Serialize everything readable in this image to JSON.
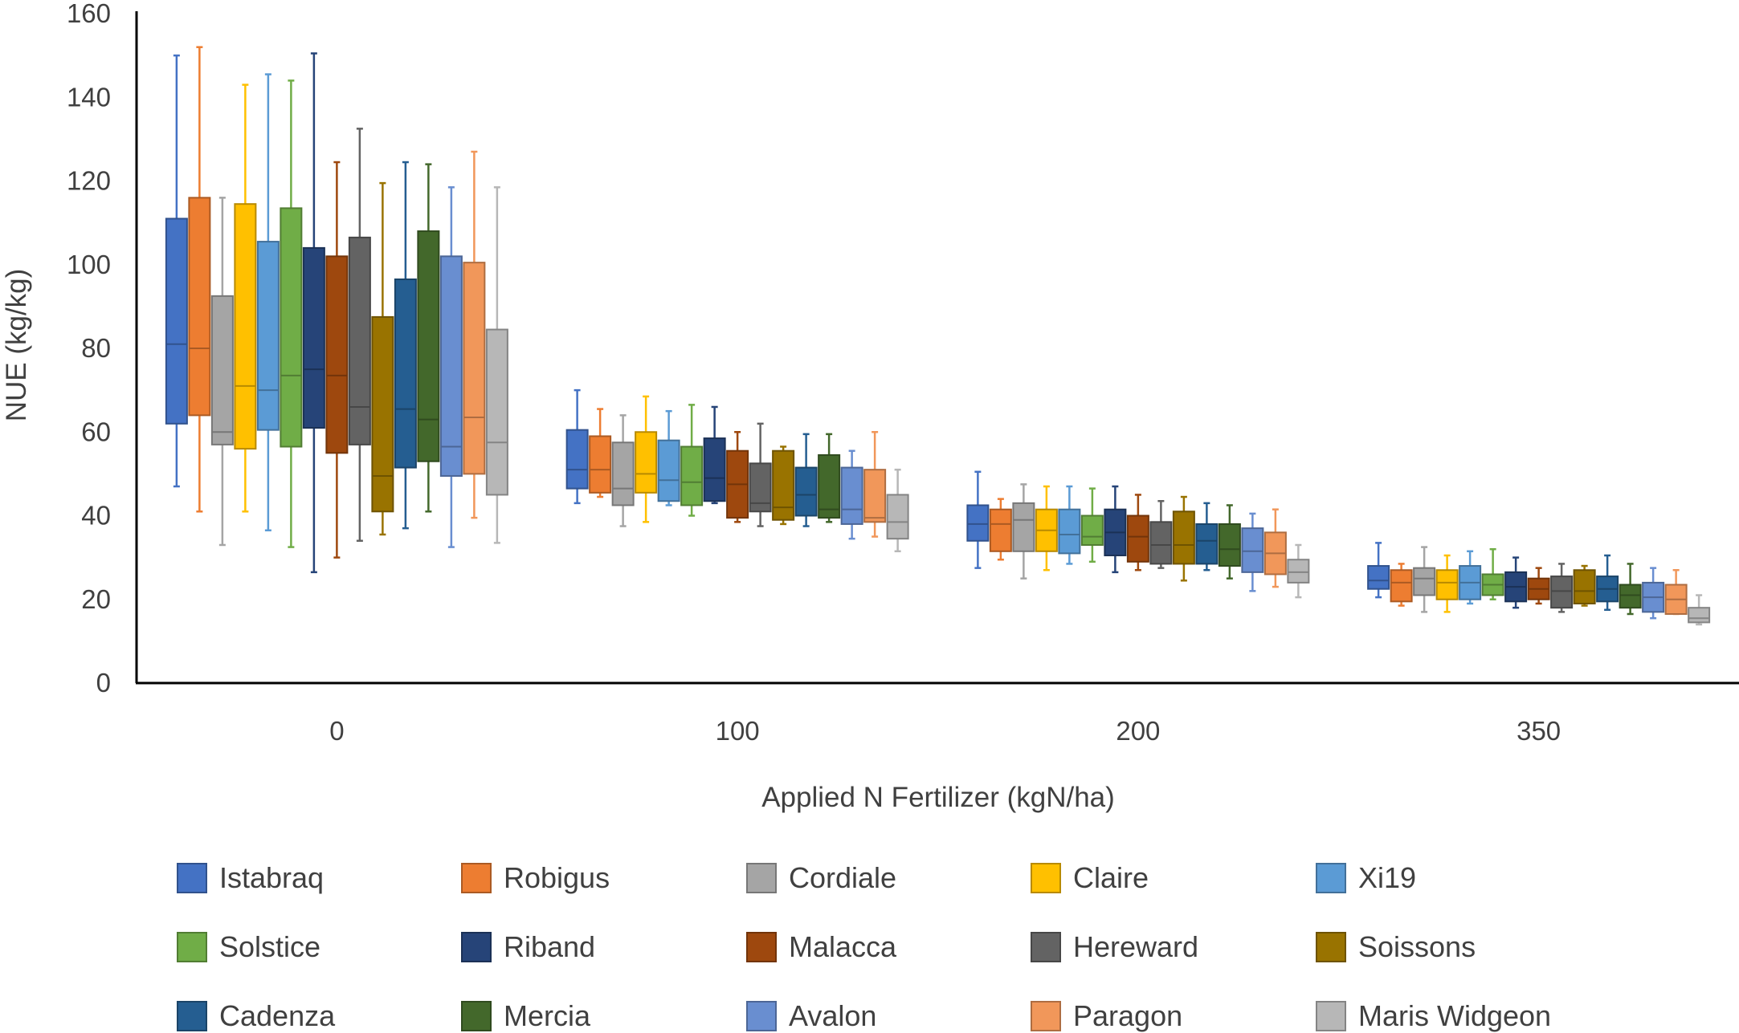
{
  "chart_data": {
    "type": "box",
    "xlabel": "Applied N Fertilizer (kgN/ha)",
    "ylabel": "NUE (kg/kg)",
    "ylim": [
      0,
      160
    ],
    "yticks": [
      0,
      20,
      40,
      60,
      80,
      100,
      120,
      140,
      160
    ],
    "categories": [
      "0",
      "100",
      "200",
      "350"
    ],
    "grid": false,
    "legend_position": "bottom",
    "series": [
      {
        "name": "Istabraq",
        "color": "#4472C4",
        "boxes": [
          {
            "min": 47,
            "q1": 62,
            "median": 81,
            "q3": 111,
            "max": 150
          },
          {
            "min": 43,
            "q1": 46.5,
            "median": 51,
            "q3": 60.5,
            "max": 70
          },
          {
            "min": 27.5,
            "q1": 34,
            "median": 38,
            "q3": 42.5,
            "max": 50.5
          },
          {
            "min": 20.5,
            "q1": 22.5,
            "median": 24.5,
            "q3": 28,
            "max": 33.5
          }
        ]
      },
      {
        "name": "Robigus",
        "color": "#ED7D31",
        "boxes": [
          {
            "min": 41,
            "q1": 64,
            "median": 80,
            "q3": 116,
            "max": 152
          },
          {
            "min": 44.5,
            "q1": 45.5,
            "median": 51,
            "q3": 59,
            "max": 65.5
          },
          {
            "min": 29.5,
            "q1": 31.5,
            "median": 38,
            "q3": 41.5,
            "max": 44
          },
          {
            "min": 18.5,
            "q1": 19.5,
            "median": 24,
            "q3": 27,
            "max": 28.5
          }
        ]
      },
      {
        "name": "Cordiale",
        "color": "#A5A5A5",
        "boxes": [
          {
            "min": 33,
            "q1": 57,
            "median": 60,
            "q3": 92.5,
            "max": 116
          },
          {
            "min": 37.5,
            "q1": 42.5,
            "median": 46.5,
            "q3": 57.5,
            "max": 64
          },
          {
            "min": 25,
            "q1": 31.5,
            "median": 39,
            "q3": 43,
            "max": 47.5
          },
          {
            "min": 17,
            "q1": 21,
            "median": 25,
            "q3": 27.5,
            "max": 32.5
          }
        ]
      },
      {
        "name": "Claire",
        "color": "#FFC000",
        "boxes": [
          {
            "min": 41,
            "q1": 56,
            "median": 71,
            "q3": 114.5,
            "max": 143
          },
          {
            "min": 38.5,
            "q1": 45.5,
            "median": 50,
            "q3": 60,
            "max": 68.5
          },
          {
            "min": 27,
            "q1": 31.5,
            "median": 36.5,
            "q3": 41.5,
            "max": 47
          },
          {
            "min": 17,
            "q1": 20,
            "median": 24,
            "q3": 27,
            "max": 30.5
          }
        ]
      },
      {
        "name": "Xi19",
        "color": "#5B9BD5",
        "boxes": [
          {
            "min": 36.5,
            "q1": 60.5,
            "median": 70,
            "q3": 105.5,
            "max": 145.5
          },
          {
            "min": 42.5,
            "q1": 43.5,
            "median": 48.5,
            "q3": 58,
            "max": 65
          },
          {
            "min": 28.5,
            "q1": 31,
            "median": 35.5,
            "q3": 41.5,
            "max": 47
          },
          {
            "min": 19,
            "q1": 20,
            "median": 24,
            "q3": 28,
            "max": 31.5
          }
        ]
      },
      {
        "name": "Solstice",
        "color": "#70AD47",
        "boxes": [
          {
            "min": 32.5,
            "q1": 56.5,
            "median": 73.5,
            "q3": 113.5,
            "max": 144
          },
          {
            "min": 40,
            "q1": 42.5,
            "median": 48,
            "q3": 56.5,
            "max": 66.5
          },
          {
            "min": 29,
            "q1": 33,
            "median": 35,
            "q3": 40,
            "max": 46.5
          },
          {
            "min": 20,
            "q1": 21,
            "median": 23.5,
            "q3": 26,
            "max": 32
          }
        ]
      },
      {
        "name": "Riband",
        "color": "#264478",
        "boxes": [
          {
            "min": 26.5,
            "q1": 61,
            "median": 75,
            "q3": 104,
            "max": 150.5
          },
          {
            "min": 43,
            "q1": 43.5,
            "median": 49,
            "q3": 58.5,
            "max": 66
          },
          {
            "min": 26.5,
            "q1": 30.5,
            "median": 36,
            "q3": 41.5,
            "max": 47
          },
          {
            "min": 18,
            "q1": 19.5,
            "median": 23,
            "q3": 26.5,
            "max": 30
          }
        ]
      },
      {
        "name": "Malacca",
        "color": "#9E480E",
        "boxes": [
          {
            "min": 30,
            "q1": 55,
            "median": 73.5,
            "q3": 102,
            "max": 124.5
          },
          {
            "min": 38.5,
            "q1": 39.5,
            "median": 47.5,
            "q3": 55.5,
            "max": 60
          },
          {
            "min": 27,
            "q1": 29,
            "median": 35,
            "q3": 40,
            "max": 45
          },
          {
            "min": 19,
            "q1": 20,
            "median": 22.5,
            "q3": 25,
            "max": 27.5
          }
        ]
      },
      {
        "name": "Hereward",
        "color": "#636363",
        "boxes": [
          {
            "min": 34,
            "q1": 57,
            "median": 66,
            "q3": 106.5,
            "max": 132.5
          },
          {
            "min": 37.5,
            "q1": 41,
            "median": 43,
            "q3": 52.5,
            "max": 62
          },
          {
            "min": 27.5,
            "q1": 28.5,
            "median": 33,
            "q3": 38.5,
            "max": 43.5
          },
          {
            "min": 17,
            "q1": 18,
            "median": 22,
            "q3": 25.5,
            "max": 28.5
          }
        ]
      },
      {
        "name": "Soissons",
        "color": "#997300",
        "boxes": [
          {
            "min": 35.5,
            "q1": 41,
            "median": 49.5,
            "q3": 87.5,
            "max": 119.5
          },
          {
            "min": 38,
            "q1": 39,
            "median": 42,
            "q3": 55.5,
            "max": 56.5
          },
          {
            "min": 24.5,
            "q1": 28.5,
            "median": 33,
            "q3": 41,
            "max": 44.5
          },
          {
            "min": 18.5,
            "q1": 19,
            "median": 22,
            "q3": 27,
            "max": 28
          }
        ]
      },
      {
        "name": "Cadenza",
        "color": "#255E91",
        "boxes": [
          {
            "min": 37,
            "q1": 51.5,
            "median": 65.5,
            "q3": 96.5,
            "max": 124.5
          },
          {
            "min": 37.5,
            "q1": 40,
            "median": 45,
            "q3": 51.5,
            "max": 59.5
          },
          {
            "min": 27,
            "q1": 28.5,
            "median": 34,
            "q3": 38,
            "max": 43
          },
          {
            "min": 17.5,
            "q1": 19.5,
            "median": 22.5,
            "q3": 25.5,
            "max": 30.5
          }
        ]
      },
      {
        "name": "Mercia",
        "color": "#43682B",
        "boxes": [
          {
            "min": 41,
            "q1": 53,
            "median": 63,
            "q3": 108,
            "max": 124
          },
          {
            "min": 38.5,
            "q1": 39.5,
            "median": 41.5,
            "q3": 54.5,
            "max": 59.5
          },
          {
            "min": 25,
            "q1": 28,
            "median": 32,
            "q3": 38,
            "max": 42.5
          },
          {
            "min": 16.5,
            "q1": 18,
            "median": 21,
            "q3": 23.5,
            "max": 28.5
          }
        ]
      },
      {
        "name": "Avalon",
        "color": "#698ED0",
        "boxes": [
          {
            "min": 32.5,
            "q1": 49.5,
            "median": 56.5,
            "q3": 102,
            "max": 118.5
          },
          {
            "min": 34.5,
            "q1": 38,
            "median": 41.5,
            "q3": 51.5,
            "max": 55.5
          },
          {
            "min": 22,
            "q1": 26.5,
            "median": 31.5,
            "q3": 37,
            "max": 40.5
          },
          {
            "min": 15.5,
            "q1": 17,
            "median": 20.5,
            "q3": 24,
            "max": 27.5
          }
        ]
      },
      {
        "name": "Paragon",
        "color": "#F1975A",
        "boxes": [
          {
            "min": 39.5,
            "q1": 50,
            "median": 63.5,
            "q3": 100.5,
            "max": 127
          },
          {
            "min": 35,
            "q1": 38.5,
            "median": 39.5,
            "q3": 51,
            "max": 60
          },
          {
            "min": 23,
            "q1": 26,
            "median": 31,
            "q3": 36,
            "max": 41.5
          },
          {
            "min": 16.5,
            "q1": 16.5,
            "median": 20,
            "q3": 23.5,
            "max": 27
          }
        ]
      },
      {
        "name": "Maris Widgeon",
        "color": "#B7B7B7",
        "boxes": [
          {
            "min": 33.5,
            "q1": 45,
            "median": 57.5,
            "q3": 84.5,
            "max": 118.5
          },
          {
            "min": 31.5,
            "q1": 34.5,
            "median": 38.5,
            "q3": 45,
            "max": 51
          },
          {
            "min": 20.5,
            "q1": 24,
            "median": 26.5,
            "q3": 29.5,
            "max": 33
          },
          {
            "min": 14,
            "q1": 14.5,
            "median": 15.5,
            "q3": 18,
            "max": 21
          }
        ]
      }
    ]
  }
}
